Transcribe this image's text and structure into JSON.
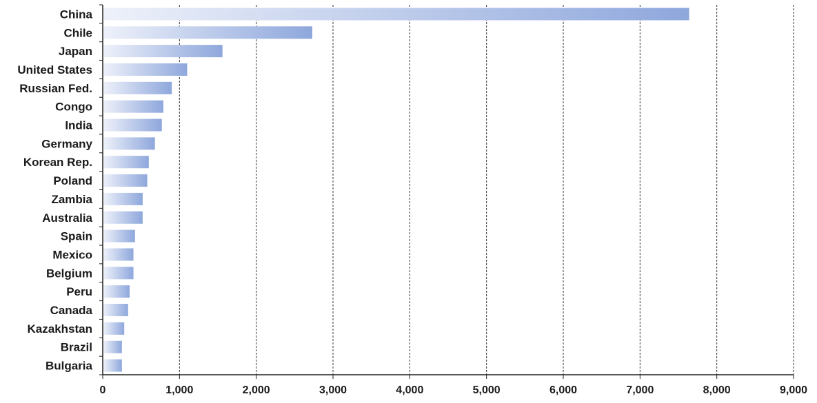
{
  "chart_data": {
    "type": "bar",
    "orientation": "horizontal",
    "categories": [
      "China",
      "Chile",
      "Japan",
      "United States",
      "Russian Fed.",
      "Congo",
      "India",
      "Germany",
      "Korean Rep.",
      "Poland",
      "Zambia",
      "Australia",
      "Spain",
      "Mexico",
      "Belgium",
      "Peru",
      "Canada",
      "Kazakhstan",
      "Brazil",
      "Bulgaria"
    ],
    "values": [
      7640,
      2730,
      1560,
      1100,
      900,
      790,
      770,
      680,
      600,
      580,
      520,
      520,
      420,
      400,
      400,
      350,
      330,
      280,
      250,
      250
    ],
    "xlim": [
      0,
      9000
    ],
    "x_ticks": [
      0,
      1000,
      2000,
      3000,
      4000,
      5000,
      6000,
      7000,
      8000,
      9000
    ],
    "x_tick_labels": [
      "0",
      "1,000",
      "2,000",
      "3,000",
      "4,000",
      "5,000",
      "6,000",
      "7,000",
      "8,000",
      "9,000"
    ],
    "title": "",
    "xlabel": "",
    "ylabel": "",
    "grid": true,
    "legend": "none",
    "colors": {
      "bar_start": "#eef1fa",
      "bar_end": "#8ea7dc",
      "grid": "#333333",
      "axis": "#222222",
      "text": "#1a1a1a",
      "background": "#ffffff"
    }
  }
}
